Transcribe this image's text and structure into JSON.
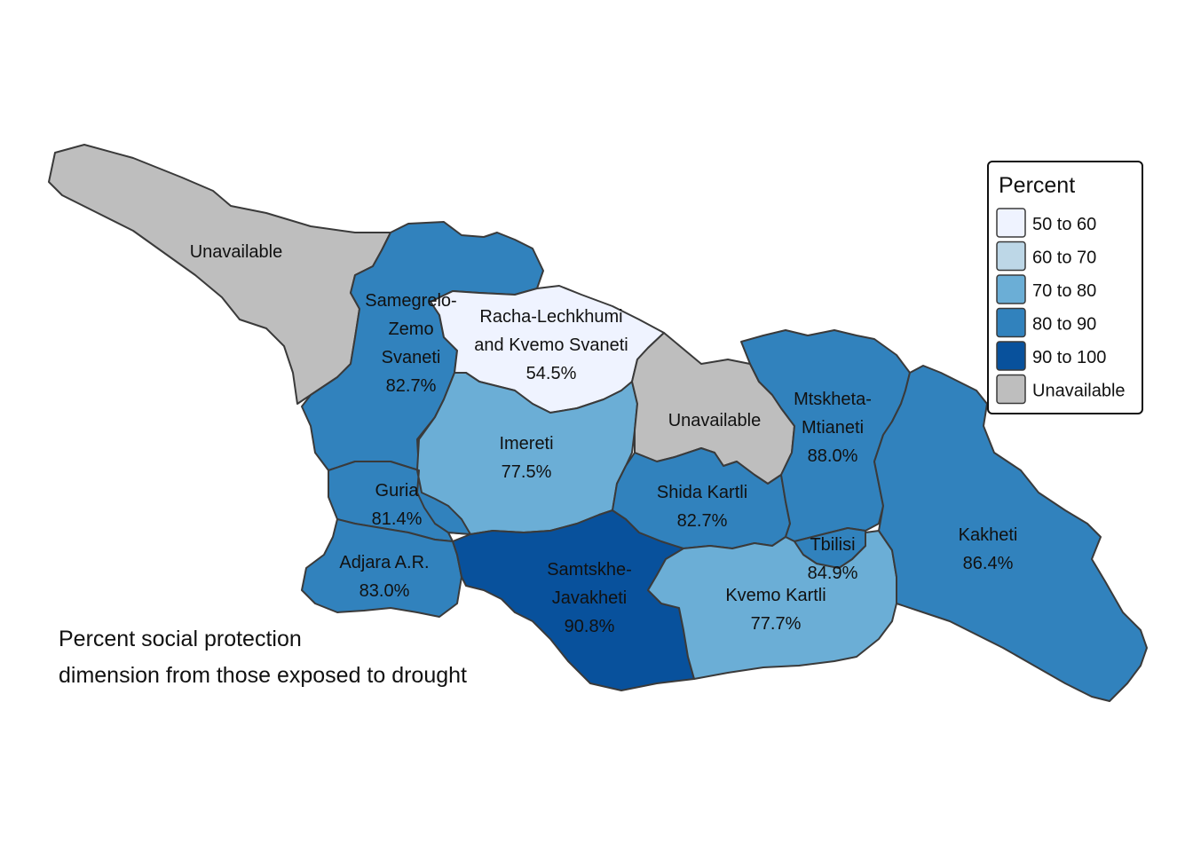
{
  "caption": {
    "line1": "Percent social protection",
    "line2": "dimension from those exposed to drought"
  },
  "legend": {
    "title": "Percent",
    "items": [
      {
        "label": "50 to 60",
        "color": "#eff3ff"
      },
      {
        "label": "60 to 70",
        "color": "#bdd7e7"
      },
      {
        "label": "70 to 80",
        "color": "#6baed6"
      },
      {
        "label": "80 to 90",
        "color": "#3182bd"
      },
      {
        "label": "90 to 100",
        "color": "#08519c"
      },
      {
        "label": "Unavailable",
        "color": "#bebebe"
      }
    ]
  },
  "regions": [
    {
      "id": "abkhazia",
      "lines": [
        "Unavailable"
      ],
      "color": "#bebebe"
    },
    {
      "id": "samegrelo",
      "lines": [
        "Samegrelo-",
        "Zemo",
        "Svaneti",
        "82.7%"
      ],
      "color": "#3182bd"
    },
    {
      "id": "racha",
      "lines": [
        "Racha-Lechkhumi",
        "and Kvemo Svaneti",
        "54.5%"
      ],
      "color": "#eff3ff"
    },
    {
      "id": "imereti",
      "lines": [
        "Imereti",
        "77.5%"
      ],
      "color": "#6baed6"
    },
    {
      "id": "guria",
      "lines": [
        "Guria",
        "81.4%"
      ],
      "color": "#3182bd"
    },
    {
      "id": "adjara",
      "lines": [
        "Adjara A.R.",
        "83.0%"
      ],
      "color": "#3182bd"
    },
    {
      "id": "samtskhe",
      "lines": [
        "Samtskhe-",
        "Javakheti",
        "90.8%"
      ],
      "color": "#08519c"
    },
    {
      "id": "south-ossetia",
      "lines": [
        "Unavailable"
      ],
      "color": "#bebebe"
    },
    {
      "id": "shida",
      "lines": [
        "Shida Kartli",
        "82.7%"
      ],
      "color": "#3182bd"
    },
    {
      "id": "mtskheta",
      "lines": [
        "Mtskheta-",
        "Mtianeti",
        "88.0%"
      ],
      "color": "#3182bd"
    },
    {
      "id": "kvemo",
      "lines": [
        "Kvemo Kartli",
        "77.7%"
      ],
      "color": "#6baed6"
    },
    {
      "id": "tbilisi",
      "lines": [
        "Tbilisi",
        "84.9%"
      ],
      "color": "#3182bd"
    },
    {
      "id": "kakheti",
      "lines": [
        "Kakheti",
        "86.4%"
      ],
      "color": "#3182bd"
    }
  ]
}
